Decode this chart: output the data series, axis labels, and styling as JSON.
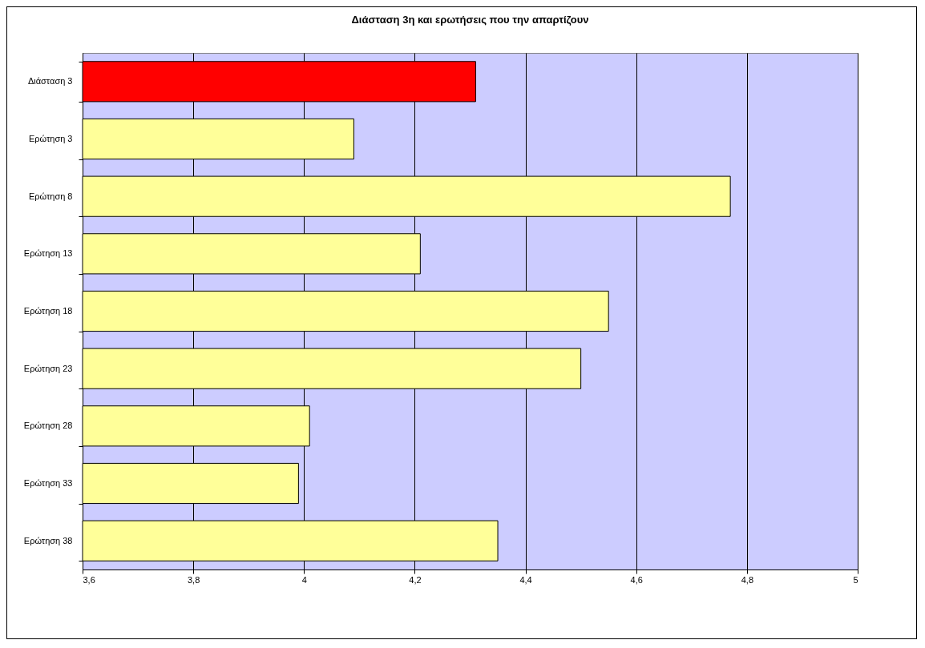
{
  "chart_data": {
    "type": "bar",
    "orientation": "horizontal",
    "title": "Διάσταση 3η και ερωτήσεις που την απαρτίζουν",
    "categories": [
      "Διάσταση 3",
      "Ερώτηση 3",
      "Ερώτηση 8",
      "Ερώτηση 13",
      "Ερώτηση 18",
      "Ερώτηση 23",
      "Ερώτηση 28",
      "Ερώτηση 33",
      "Ερώτηση 38"
    ],
    "values": [
      4.31,
      4.09,
      4.77,
      4.21,
      4.55,
      4.5,
      4.01,
      3.99,
      4.35
    ],
    "colors": [
      "#ff0000",
      "#ffff99",
      "#ffff99",
      "#ffff99",
      "#ffff99",
      "#ffff99",
      "#ffff99",
      "#ffff99",
      "#ffff99"
    ],
    "xlim": [
      3.6,
      5
    ],
    "xticks": [
      {
        "value": 3.6,
        "label": "3,6"
      },
      {
        "value": 3.8,
        "label": "3,8"
      },
      4,
      {
        "value": 4.2,
        "label": "4,2"
      },
      {
        "value": 4.4,
        "label": "4,4"
      },
      {
        "value": 4.6,
        "label": "4,6"
      },
      {
        "value": 4.8,
        "label": "4,8"
      },
      5
    ],
    "grid": "x"
  }
}
